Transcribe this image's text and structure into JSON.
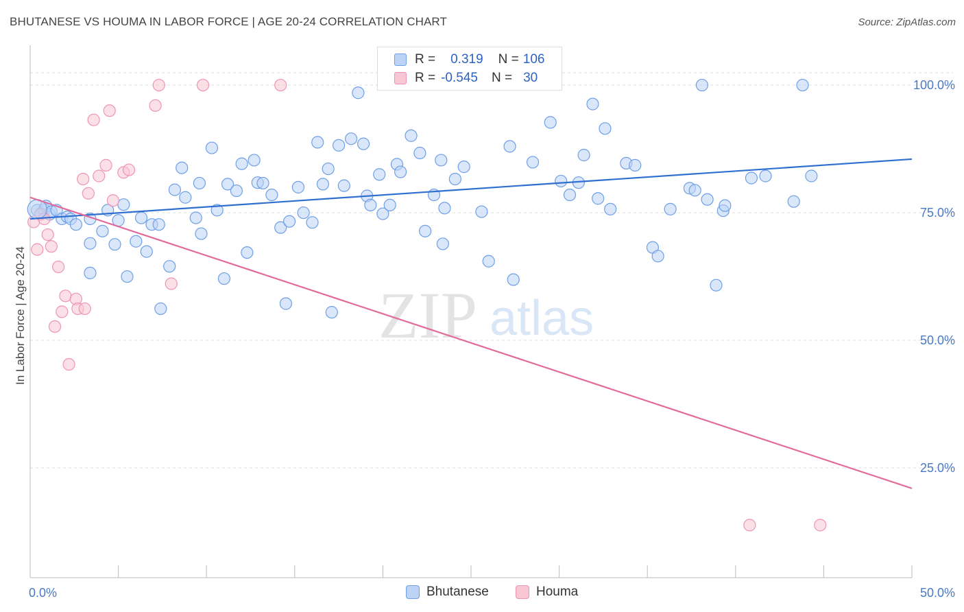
{
  "header": {
    "title": "BHUTANESE VS HOUMA IN LABOR FORCE | AGE 20-24 CORRELATION CHART",
    "source": "Source: ZipAtlas.com"
  },
  "watermark": {
    "zip": "ZIP",
    "atlas": "atlas"
  },
  "legend": {
    "rows": [
      {
        "r_label": "R =",
        "r_value": "0.319",
        "n_label": "N =",
        "n_value": "106",
        "color": "#6fa0e8"
      },
      {
        "r_label": "R =",
        "r_value": "-0.545",
        "n_label": "N =",
        "n_value": "30",
        "color": "#f0a0bb"
      }
    ]
  },
  "colors": {
    "blue_fill": "#bcd3f5",
    "blue_stroke": "#6e9fe6",
    "blue_line": "#2e6fd0",
    "pink_fill": "#f9c6d6",
    "pink_stroke": "#ee94b3",
    "pink_line": "#e26a9a",
    "grid": "#dddddd",
    "tick_label": "#4a78c4"
  },
  "chart_data": {
    "type": "scatter",
    "xlabel": "",
    "ylabel": "In Labor Force | Age 20-24",
    "xlim": [
      0,
      50
    ],
    "ylim": [
      3.5,
      107
    ],
    "x_tick_labels": [
      "0.0%",
      "50.0%"
    ],
    "y_ticks": [
      25,
      50,
      75,
      100
    ],
    "y_tick_labels": [
      "25.0%",
      "50.0%",
      "75.0%",
      "100.0%"
    ],
    "grid": "horizontal dashed",
    "series": [
      {
        "name": "Bhutanese",
        "trend": {
          "x": [
            0,
            50
          ],
          "y": [
            73.8,
            85.5
          ]
        },
        "points": [
          [
            0.4,
            75.5
          ],
          [
            0.6,
            74.8
          ],
          [
            0.8,
            75.6
          ],
          [
            0.9,
            76.3
          ],
          [
            1.1,
            74.7
          ],
          [
            1.2,
            75.2
          ],
          [
            1.5,
            75.5
          ],
          [
            1.8,
            73.8
          ],
          [
            2.1,
            74.2
          ],
          [
            2.3,
            73.8
          ],
          [
            2.6,
            72.7
          ],
          [
            3.4,
            73.8
          ],
          [
            3.4,
            63.2
          ],
          [
            4.1,
            71.4
          ],
          [
            3.4,
            69
          ],
          [
            4.4,
            75.5
          ],
          [
            4.8,
            68.8
          ],
          [
            5.0,
            73.5
          ],
          [
            5.3,
            76.6
          ],
          [
            5.5,
            62.5
          ],
          [
            6.0,
            69.4
          ],
          [
            6.3,
            74
          ],
          [
            6.6,
            67.4
          ],
          [
            6.9,
            72.7
          ],
          [
            7.3,
            72.7
          ],
          [
            7.4,
            56.2
          ],
          [
            7.9,
            64.5
          ],
          [
            8.2,
            79.5
          ],
          [
            8.6,
            83.8
          ],
          [
            8.8,
            78
          ],
          [
            9.4,
            74
          ],
          [
            9.6,
            80.8
          ],
          [
            9.7,
            70.9
          ],
          [
            10.3,
            87.7
          ],
          [
            10.6,
            75.5
          ],
          [
            11.0,
            62.1
          ],
          [
            11.2,
            80.6
          ],
          [
            11.7,
            79.3
          ],
          [
            12.0,
            84.6
          ],
          [
            12.3,
            67.2
          ],
          [
            12.7,
            85.3
          ],
          [
            12.9,
            80.9
          ],
          [
            13.2,
            80.8
          ],
          [
            13.7,
            78.5
          ],
          [
            14.2,
            72.1
          ],
          [
            14.5,
            57.2
          ],
          [
            14.7,
            73.3
          ],
          [
            15.2,
            80
          ],
          [
            15.5,
            75
          ],
          [
            16.0,
            73.1
          ],
          [
            16.3,
            88.8
          ],
          [
            16.6,
            80.6
          ],
          [
            16.9,
            83.6
          ],
          [
            17.1,
            55.5
          ],
          [
            17.5,
            88.2
          ],
          [
            17.8,
            80.3
          ],
          [
            18.2,
            89.5
          ],
          [
            18.6,
            98.5
          ],
          [
            18.9,
            88.5
          ],
          [
            19.1,
            78.3
          ],
          [
            19.3,
            76.5
          ],
          [
            19.8,
            82.5
          ],
          [
            20.0,
            74.8
          ],
          [
            20.4,
            76.5
          ],
          [
            20.8,
            84.5
          ],
          [
            21.0,
            83
          ],
          [
            21.6,
            90.1
          ],
          [
            22.1,
            86.7
          ],
          [
            22.4,
            71.4
          ],
          [
            22.9,
            78.5
          ],
          [
            23.3,
            85.3
          ],
          [
            23.4,
            68.9
          ],
          [
            23.5,
            75.9
          ],
          [
            24.1,
            81.6
          ],
          [
            24.6,
            84
          ],
          [
            25.6,
            75.2
          ],
          [
            26.0,
            65.5
          ],
          [
            27.2,
            88
          ],
          [
            27.4,
            61.9
          ],
          [
            28.5,
            84.9
          ],
          [
            29.5,
            92.7
          ],
          [
            30.1,
            81.2
          ],
          [
            30.6,
            78.5
          ],
          [
            31.1,
            80.9
          ],
          [
            31.4,
            86.3
          ],
          [
            31.9,
            96.3
          ],
          [
            32.2,
            77.8
          ],
          [
            32.6,
            91.5
          ],
          [
            32.9,
            75.7
          ],
          [
            33.8,
            84.7
          ],
          [
            34.3,
            84.3
          ],
          [
            35.3,
            68.2
          ],
          [
            35.6,
            66.5
          ],
          [
            36.3,
            75.7
          ],
          [
            37.4,
            79.8
          ],
          [
            37.7,
            79.4
          ],
          [
            38.1,
            100
          ],
          [
            38.4,
            77.6
          ],
          [
            38.9,
            60.8
          ],
          [
            39.3,
            75.4
          ],
          [
            39.4,
            76.4
          ],
          [
            40.9,
            81.8
          ],
          [
            41.7,
            82.2
          ],
          [
            43.3,
            77.2
          ],
          [
            43.8,
            100
          ],
          [
            44.3,
            82.2
          ]
        ]
      },
      {
        "name": "Houma",
        "trend": {
          "x": [
            0,
            50
          ],
          "y": [
            78,
            21
          ]
        },
        "points": [
          [
            0.2,
            73.2
          ],
          [
            0.4,
            67.8
          ],
          [
            0.6,
            74.7
          ],
          [
            0.8,
            73.8
          ],
          [
            1.0,
            70.7
          ],
          [
            1.2,
            68.4
          ],
          [
            1.4,
            52.7
          ],
          [
            1.6,
            64.4
          ],
          [
            1.8,
            55.6
          ],
          [
            2.0,
            58.7
          ],
          [
            2.2,
            45.3
          ],
          [
            2.6,
            58.1
          ],
          [
            2.7,
            56.2
          ],
          [
            3.0,
            81.6
          ],
          [
            3.1,
            56.2
          ],
          [
            3.3,
            78.8
          ],
          [
            3.6,
            93.2
          ],
          [
            3.9,
            82.2
          ],
          [
            4.3,
            84.3
          ],
          [
            4.5,
            95
          ],
          [
            4.7,
            77.4
          ],
          [
            5.3,
            82.9
          ],
          [
            5.6,
            83.4
          ],
          [
            7.1,
            96
          ],
          [
            7.3,
            100
          ],
          [
            8.0,
            61.1
          ],
          [
            9.8,
            100
          ],
          [
            14.2,
            100
          ],
          [
            40.8,
            13.8
          ],
          [
            44.8,
            13.8
          ]
        ]
      }
    ]
  }
}
